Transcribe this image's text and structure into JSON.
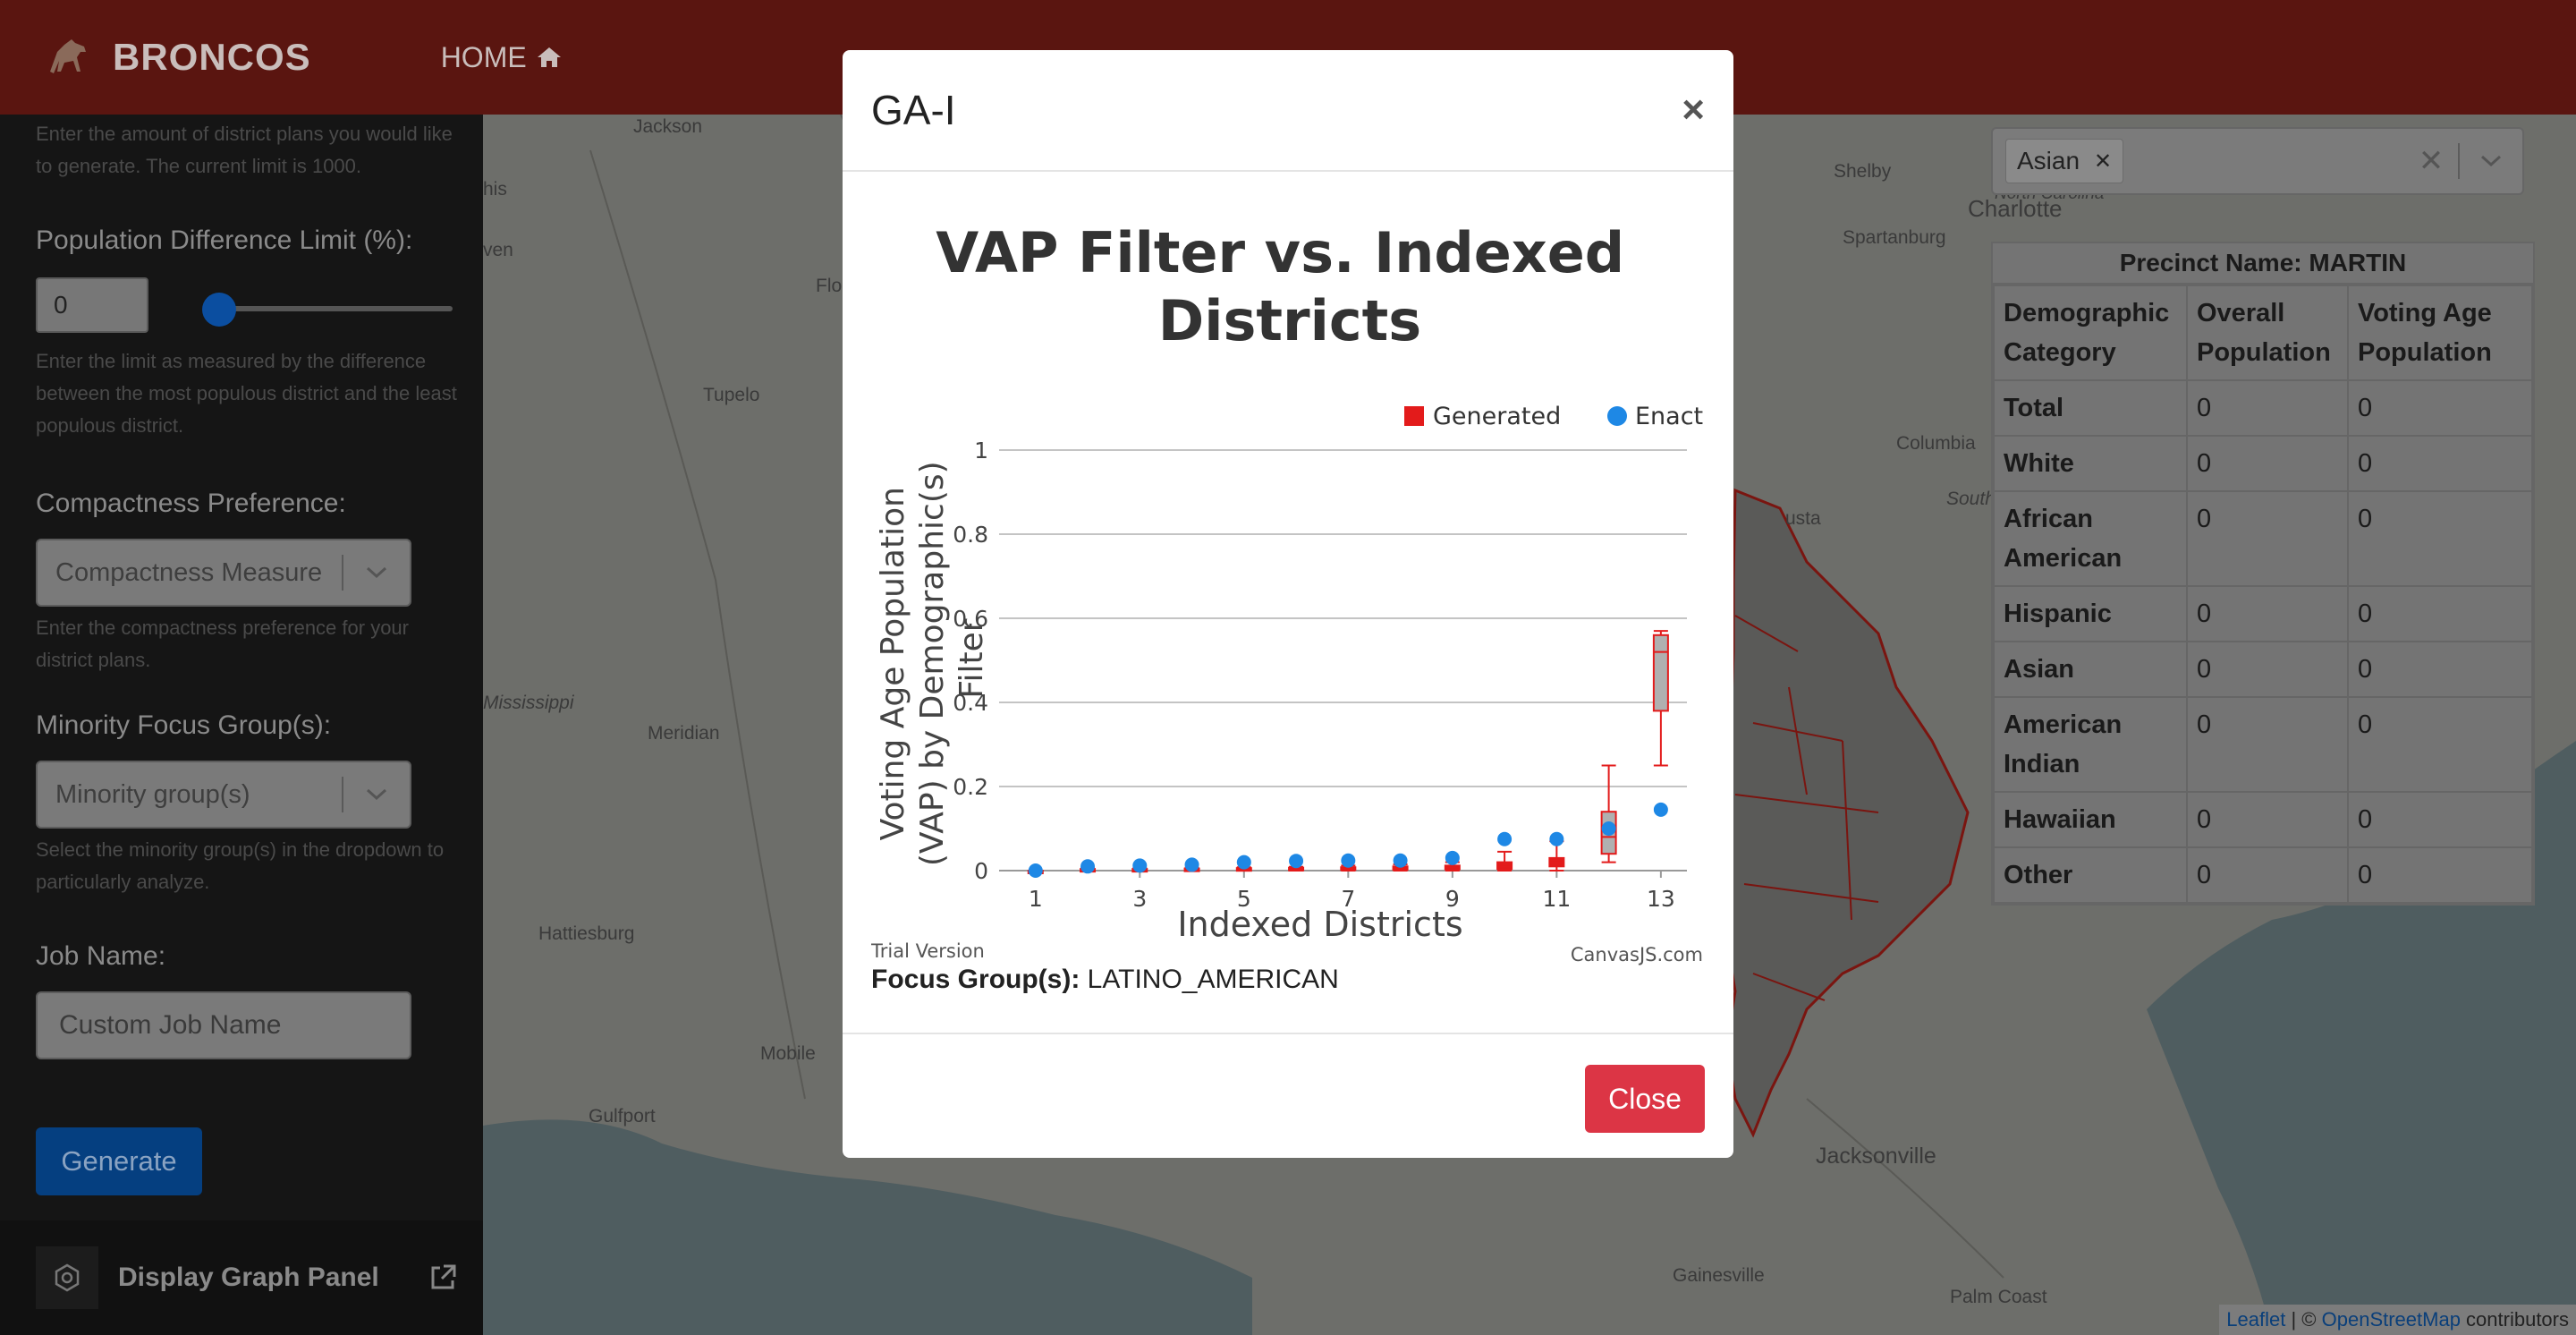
{
  "nav": {
    "brand": "BRONCOS",
    "home_label": "HOME"
  },
  "sidebar": {
    "plans_help": "Enter the amount of district plans you would like to generate. The current limit is 1000.",
    "pop_label": "Population Difference Limit (%):",
    "pop_value": "0",
    "pop_help": "Enter the limit as measured by the difference between the most populous district and the least populous district.",
    "compact_label": "Compactness Preference:",
    "compact_placeholder": "Compactness Measure",
    "compact_help": "Enter the compactness preference for your district plans.",
    "minority_label": "Minority Focus Group(s):",
    "minority_placeholder": "Minority group(s)",
    "minority_help": "Select the minority group(s) in the dropdown to particularly analyze.",
    "job_label": "Job Name:",
    "job_placeholder": "Custom Job Name",
    "generate_label": "Generate",
    "graph_panel_label": "Display Graph Panel"
  },
  "map": {
    "labels": [
      "Jackson",
      "Shelby",
      "Charlotte",
      "North Carolina",
      "Spartanburg",
      "Tupelo",
      "Columbia",
      "South",
      "Mississippi",
      "Meridian",
      "Hattiesburg",
      "Mobile",
      "Gulfport",
      "Jacksonville",
      "Gainesville",
      "Palm Coast",
      "usta",
      "his",
      "ven",
      "Flo"
    ],
    "demographic_filter_tag": "Asian",
    "precinct_title": "Precinct Name: MARTIN",
    "precinct_headers": [
      "Demographic Category",
      "Overall Population",
      "Voting Age Population"
    ],
    "precinct_rows": [
      {
        "category": "Total",
        "overall": "0",
        "vap": "0"
      },
      {
        "category": "White",
        "overall": "0",
        "vap": "0"
      },
      {
        "category": "African American",
        "overall": "0",
        "vap": "0"
      },
      {
        "category": "Hispanic",
        "overall": "0",
        "vap": "0"
      },
      {
        "category": "Asian",
        "overall": "0",
        "vap": "0"
      },
      {
        "category": "American Indian",
        "overall": "0",
        "vap": "0"
      },
      {
        "category": "Hawaiian",
        "overall": "0",
        "vap": "0"
      },
      {
        "category": "Other",
        "overall": "0",
        "vap": "0"
      }
    ],
    "attribution": {
      "leaflet": "Leaflet",
      "sep": " | © ",
      "osm": "OpenStreetMap",
      "tail": " contributors"
    }
  },
  "modal": {
    "title": "GA-I",
    "close_x": "×",
    "focus_label": "Focus Group(s):",
    "focus_value": "LATINO_AMERICAN",
    "close_label": "Close"
  },
  "colors": {
    "generated": "#e31b1b",
    "enacted": "#1e88e5",
    "danger": "#dc3545"
  },
  "chart_data": {
    "type": "box+scatter",
    "title": "VAP Filter vs. Indexed Districts",
    "xlabel": "Indexed Districts",
    "ylabel": "Voting Age Population (VAP) by Demographic(s) Filter",
    "legend": [
      "Generated",
      "Enacted"
    ],
    "legend_position": "top-right",
    "xticks": [
      "1",
      "3",
      "5",
      "7",
      "9",
      "11",
      "13"
    ],
    "yticks": [
      "0",
      "0.2",
      "0.4",
      "0.6",
      "0.8",
      "1"
    ],
    "ylim": [
      0,
      1
    ],
    "xlim": [
      0.3,
      13.5
    ],
    "credit": "CanvasJS.com",
    "watermark": "Trial Version",
    "generated": [
      {
        "x": 1,
        "min": 0.0,
        "q1": 0.0,
        "median": 0.0,
        "q3": 0.0,
        "max": 0.0
      },
      {
        "x": 2,
        "min": 0.0,
        "q1": 0.0,
        "median": 0.002,
        "q3": 0.004,
        "max": 0.006
      },
      {
        "x": 3,
        "min": 0.0,
        "q1": 0.0,
        "median": 0.002,
        "q3": 0.004,
        "max": 0.006
      },
      {
        "x": 4,
        "min": 0.0,
        "q1": 0.001,
        "median": 0.003,
        "q3": 0.005,
        "max": 0.007
      },
      {
        "x": 5,
        "min": 0.0,
        "q1": 0.001,
        "median": 0.003,
        "q3": 0.006,
        "max": 0.008
      },
      {
        "x": 6,
        "min": 0.0,
        "q1": 0.001,
        "median": 0.004,
        "q3": 0.007,
        "max": 0.009
      },
      {
        "x": 7,
        "min": 0.0,
        "q1": 0.002,
        "median": 0.005,
        "q3": 0.008,
        "max": 0.012
      },
      {
        "x": 8,
        "min": 0.0,
        "q1": 0.002,
        "median": 0.006,
        "q3": 0.01,
        "max": 0.015
      },
      {
        "x": 9,
        "min": 0.0,
        "q1": 0.003,
        "median": 0.007,
        "q3": 0.012,
        "max": 0.02
      },
      {
        "x": 10,
        "min": 0.0,
        "q1": 0.004,
        "median": 0.01,
        "q3": 0.02,
        "max": 0.045
      },
      {
        "x": 11,
        "min": 0.0,
        "q1": 0.01,
        "median": 0.02,
        "q3": 0.03,
        "max": 0.07
      },
      {
        "x": 12,
        "min": 0.02,
        "q1": 0.04,
        "median": 0.08,
        "q3": 0.14,
        "max": 0.25
      },
      {
        "x": 13,
        "min": 0.25,
        "q1": 0.38,
        "median": 0.52,
        "q3": 0.56,
        "max": 0.57
      }
    ],
    "enacted": [
      {
        "x": 1,
        "y": 0.0
      },
      {
        "x": 2,
        "y": 0.01
      },
      {
        "x": 3,
        "y": 0.012
      },
      {
        "x": 4,
        "y": 0.014
      },
      {
        "x": 5,
        "y": 0.02
      },
      {
        "x": 6,
        "y": 0.023
      },
      {
        "x": 7,
        "y": 0.024
      },
      {
        "x": 8,
        "y": 0.024
      },
      {
        "x": 9,
        "y": 0.03
      },
      {
        "x": 10,
        "y": 0.075
      },
      {
        "x": 11,
        "y": 0.075
      },
      {
        "x": 12,
        "y": 0.1
      },
      {
        "x": 13,
        "y": 0.145
      }
    ]
  }
}
